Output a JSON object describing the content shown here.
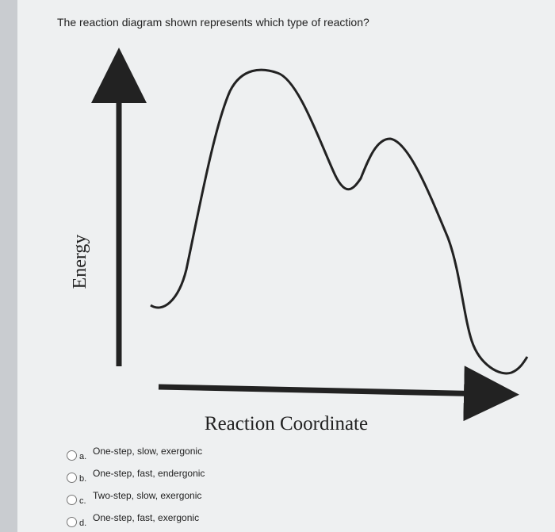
{
  "question": "The reaction diagram shown represents which type of reaction?",
  "diagram": {
    "y_label": "Energy",
    "x_label": "Reaction Coordinate"
  },
  "options": [
    {
      "letter": "a.",
      "text": "One-step, slow, exergonic"
    },
    {
      "letter": "b.",
      "text": "One-step, fast, endergonic"
    },
    {
      "letter": "c.",
      "text": "Two-step, slow, exergonic"
    },
    {
      "letter": "d.",
      "text": "One-step, fast, exergonic"
    }
  ]
}
